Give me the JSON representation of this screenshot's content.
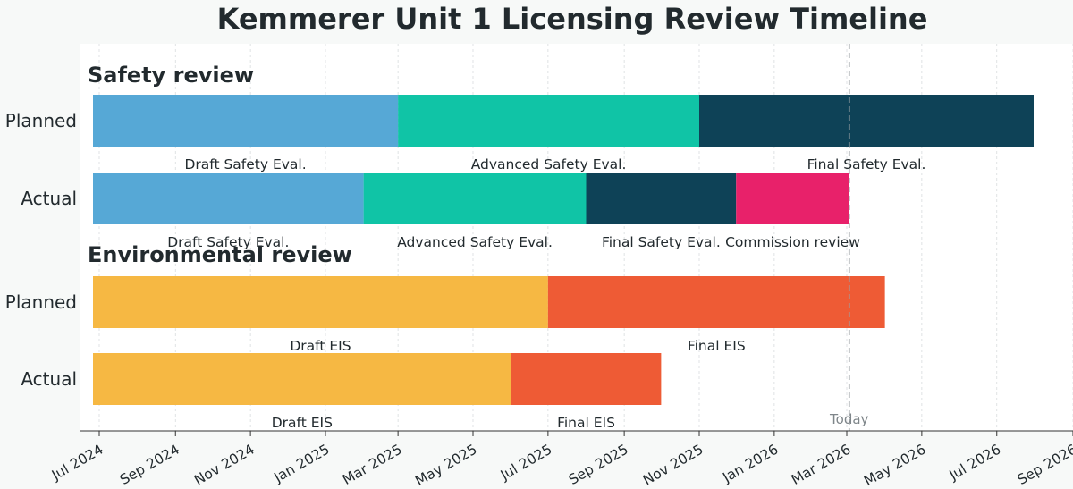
{
  "chart_data": {
    "type": "gantt",
    "title": "Kemmerer Unit 1 Licensing Review Timeline",
    "x_axis": {
      "range": [
        "2024-06-15",
        "2026-09-01"
      ],
      "ticks": [
        {
          "date": "2024-07-01",
          "label": "Jul 2024"
        },
        {
          "date": "2024-09-01",
          "label": "Sep 2024"
        },
        {
          "date": "2024-11-01",
          "label": "Nov 2024"
        },
        {
          "date": "2025-01-01",
          "label": "Jan 2025"
        },
        {
          "date": "2025-03-01",
          "label": "Mar 2025"
        },
        {
          "date": "2025-05-01",
          "label": "May 2025"
        },
        {
          "date": "2025-07-01",
          "label": "Jul 2025"
        },
        {
          "date": "2025-09-01",
          "label": "Sep 2025"
        },
        {
          "date": "2025-11-01",
          "label": "Nov 2025"
        },
        {
          "date": "2026-01-01",
          "label": "Jan 2026"
        },
        {
          "date": "2026-03-01",
          "label": "Mar 2026"
        },
        {
          "date": "2026-05-01",
          "label": "May 2026"
        },
        {
          "date": "2026-07-01",
          "label": "Jul 2026"
        },
        {
          "date": "2026-09-01",
          "label": "Sep 2026"
        }
      ],
      "grid": true
    },
    "today": {
      "date": "2026-03-03",
      "label": "Today"
    },
    "colors": {
      "draft_safety": "#56a8d6",
      "advanced_safety": "#10c4a6",
      "final_safety": "#0e4257",
      "commission": "#e8216a",
      "draft_eis": "#f6b843",
      "final_eis": "#ee5b35"
    },
    "sections": [
      {
        "title": "Safety review",
        "rows": [
          {
            "label": "Planned",
            "segments": [
              {
                "name": "Draft Safety Eval.",
                "start": "2024-06-15",
                "end": "2025-03-01",
                "color": "#56a8d6"
              },
              {
                "name": "Advanced Safety Eval.",
                "start": "2025-03-01",
                "end": "2025-11-01",
                "color": "#10c4a6"
              },
              {
                "name": "Final Safety Eval.",
                "start": "2025-11-01",
                "end": "2026-07-31",
                "color": "#0e4257"
              }
            ]
          },
          {
            "label": "Actual",
            "segments": [
              {
                "name": "Draft Safety Eval.",
                "start": "2024-06-15",
                "end": "2025-02-01",
                "color": "#56a8d6"
              },
              {
                "name": "Advanced Safety Eval.",
                "start": "2025-02-01",
                "end": "2025-08-01",
                "color": "#10c4a6"
              },
              {
                "name": "Final Safety Eval.",
                "start": "2025-08-01",
                "end": "2025-12-01",
                "color": "#0e4257"
              },
              {
                "name": "Commission review",
                "start": "2025-12-01",
                "end": "2026-03-03",
                "color": "#e8216a"
              }
            ]
          }
        ]
      },
      {
        "title": "Environmental review",
        "rows": [
          {
            "label": "Planned",
            "segments": [
              {
                "name": "Draft EIS",
                "start": "2024-06-15",
                "end": "2025-07-01",
                "color": "#f6b843"
              },
              {
                "name": "Final EIS",
                "start": "2025-07-01",
                "end": "2026-04-01",
                "color": "#ee5b35"
              }
            ]
          },
          {
            "label": "Actual",
            "segments": [
              {
                "name": "Draft EIS",
                "start": "2024-06-15",
                "end": "2025-06-01",
                "color": "#f6b843"
              },
              {
                "name": "Final EIS",
                "start": "2025-06-01",
                "end": "2025-10-01",
                "color": "#ee5b35"
              }
            ]
          }
        ]
      }
    ]
  }
}
